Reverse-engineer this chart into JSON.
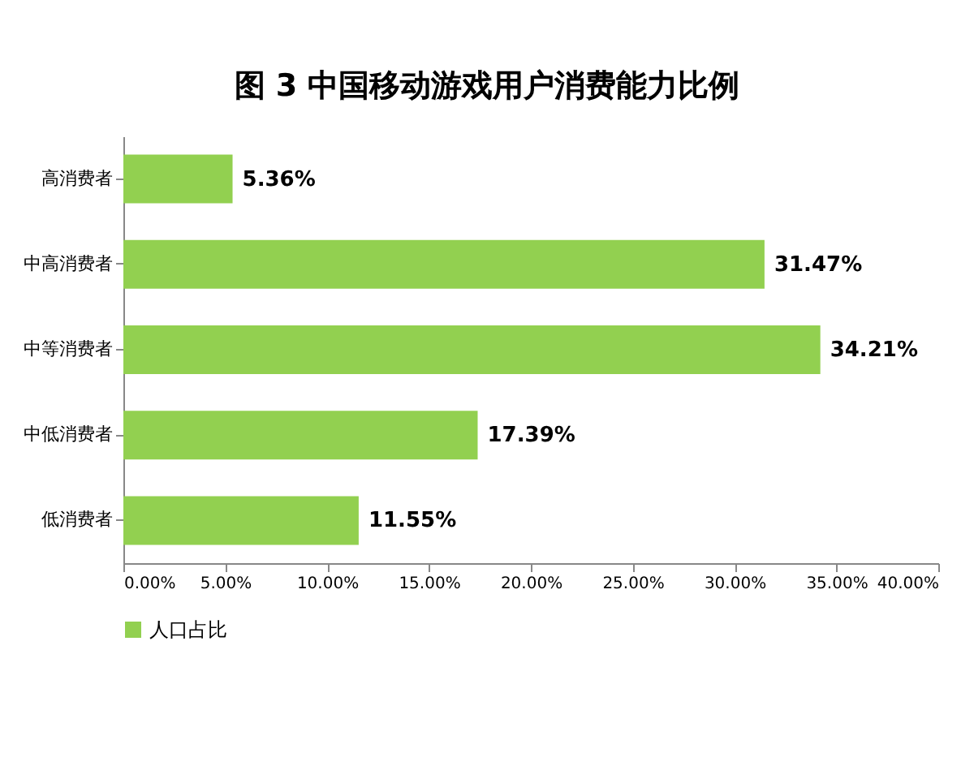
{
  "chart_data": {
    "type": "bar",
    "orientation": "horizontal",
    "title": "图 3  中国移动游戏用户消费能力比例",
    "categories": [
      "高消费者",
      "中高消费者",
      "中等消费者",
      "中低消费者",
      "低消费者"
    ],
    "series": [
      {
        "name": "人口占比",
        "color": "#92d050",
        "values": [
          5.36,
          31.47,
          34.21,
          17.39,
          11.55
        ],
        "value_labels": [
          "5.36%",
          "31.47%",
          "34.21%",
          "17.39%",
          "11.55%"
        ]
      }
    ],
    "xlim": [
      0,
      40
    ],
    "xticks": [
      {
        "value": 0,
        "label": "0.00%"
      },
      {
        "value": 5,
        "label": "5.00%"
      },
      {
        "value": 10,
        "label": "10.00%"
      },
      {
        "value": 15,
        "label": "15.00%"
      },
      {
        "value": 20,
        "label": "20.00%"
      },
      {
        "value": 25,
        "label": "25.00%"
      },
      {
        "value": 30,
        "label": "30.00%"
      },
      {
        "value": 35,
        "label": "35.00%"
      },
      {
        "value": 40,
        "label": "40.00%"
      }
    ],
    "grid": false,
    "legend": "bottom"
  }
}
